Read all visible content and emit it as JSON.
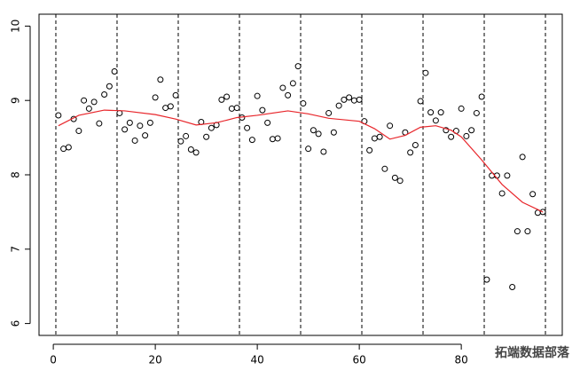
{
  "chart_data": {
    "type": "scatter",
    "x": [
      1,
      2,
      3,
      4,
      5,
      6,
      7,
      8,
      9,
      10,
      11,
      12,
      13,
      14,
      15,
      16,
      17,
      18,
      19,
      20,
      21,
      22,
      23,
      24,
      25,
      26,
      27,
      28,
      29,
      30,
      31,
      32,
      33,
      34,
      35,
      36,
      37,
      38,
      39,
      40,
      41,
      42,
      43,
      44,
      45,
      46,
      47,
      48,
      49,
      50,
      51,
      52,
      53,
      54,
      55,
      56,
      57,
      58,
      59,
      60,
      61,
      62,
      63,
      64,
      65,
      66,
      67,
      68,
      69,
      70,
      71,
      72,
      73,
      74,
      75,
      76,
      77,
      78,
      79,
      80,
      81,
      82,
      83,
      84,
      85,
      86,
      87,
      88,
      89,
      90,
      91,
      92,
      93,
      94,
      95,
      96
    ],
    "values": [
      8.8,
      8.35,
      8.37,
      8.75,
      8.59,
      9.0,
      8.89,
      8.98,
      8.69,
      9.08,
      9.19,
      9.39,
      8.83,
      8.61,
      8.7,
      8.46,
      8.66,
      8.53,
      8.7,
      9.04,
      9.28,
      8.9,
      8.92,
      9.07,
      8.45,
      8.52,
      8.34,
      8.3,
      8.71,
      8.51,
      8.63,
      8.67,
      9.01,
      9.05,
      8.89,
      8.9,
      8.77,
      8.63,
      8.47,
      9.06,
      8.87,
      8.7,
      8.48,
      8.49,
      9.17,
      9.07,
      9.23,
      9.46,
      8.96,
      8.35,
      8.6,
      8.55,
      8.31,
      8.83,
      8.57,
      8.93,
      9.01,
      9.04,
      9.0,
      9.01,
      8.72,
      8.33,
      8.49,
      8.51,
      8.08,
      8.66,
      7.96,
      7.92,
      8.57,
      8.3,
      8.4,
      8.99,
      9.37,
      8.84,
      8.73,
      8.84,
      8.6,
      8.51,
      8.59,
      8.89,
      8.52,
      8.6,
      8.83,
      9.05,
      6.59,
      7.99,
      7.99,
      7.75,
      7.99,
      6.49,
      7.24,
      8.24,
      7.24,
      7.74,
      7.49,
      7.5
    ],
    "trend": {
      "color": "#e8262b",
      "x": [
        1,
        5,
        10,
        14,
        20,
        24,
        28,
        32,
        36,
        40,
        46,
        50,
        54,
        60,
        63,
        66,
        69,
        72,
        75,
        78,
        80,
        84,
        88,
        92,
        96
      ],
      "values": [
        8.66,
        8.8,
        8.87,
        8.86,
        8.81,
        8.75,
        8.67,
        8.7,
        8.77,
        8.8,
        8.86,
        8.82,
        8.76,
        8.72,
        8.62,
        8.48,
        8.53,
        8.64,
        8.66,
        8.6,
        8.51,
        8.2,
        7.87,
        7.63,
        7.5
      ]
    },
    "vlines": [
      0.5,
      12.5,
      24.5,
      36.5,
      48.5,
      60.5,
      72.5,
      84.5,
      96.5
    ],
    "xlim": [
      -2.8,
      99.8
    ],
    "ylim": [
      5.84,
      10.16
    ],
    "xticks": [
      0,
      20,
      40,
      60,
      80
    ],
    "yticks": [
      6,
      7,
      8,
      9,
      10
    ],
    "watermark": "拓端数据部落"
  }
}
